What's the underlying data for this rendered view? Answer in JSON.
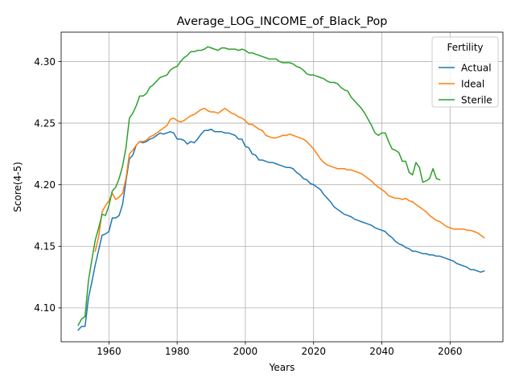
{
  "chart_data": {
    "type": "line",
    "title": "Average_LOG_INCOME_of_Black_Pop",
    "xlabel": "Years",
    "ylabel": "Score(4-5)",
    "xlim": [
      1946,
      2075.5
    ],
    "ylim": [
      4.0725,
      4.3238
    ],
    "xticks": [
      1960,
      1980,
      2000,
      2020,
      2040,
      2060
    ],
    "yticks": [
      4.1,
      4.15,
      4.2,
      4.25,
      4.3
    ],
    "xtick_labels": [
      "1960",
      "1980",
      "2000",
      "2020",
      "2040",
      "2060"
    ],
    "ytick_labels": [
      "4.10",
      "4.15",
      "4.20",
      "4.25",
      "4.30"
    ],
    "grid": true,
    "legend": {
      "title": "Fertility",
      "position": "upper right"
    },
    "series": [
      {
        "name": "Actual",
        "color": "#1f77b4",
        "x": [
          1951,
          1952,
          1953,
          1954,
          1955,
          1956,
          1957,
          1958,
          1959,
          1960,
          1961,
          1962,
          1963,
          1964,
          1965,
          1966,
          1967,
          1968,
          1969,
          1970,
          1971,
          1972,
          1973,
          1974,
          1975,
          1976,
          1977,
          1978,
          1979,
          1980,
          1981,
          1982,
          1983,
          1984,
          1985,
          1986,
          1987,
          1988,
          1989,
          1990,
          1991,
          1992,
          1993,
          1994,
          1995,
          1996,
          1997,
          1998,
          1999,
          2000,
          2001,
          2002,
          2003,
          2004,
          2005,
          2006,
          2007,
          2008,
          2009,
          2010,
          2011,
          2012,
          2013,
          2014,
          2015,
          2016,
          2017,
          2018,
          2019,
          2020,
          2021,
          2022,
          2023,
          2024,
          2025,
          2026,
          2027,
          2028,
          2029,
          2030,
          2031,
          2032,
          2033,
          2034,
          2035,
          2036,
          2037,
          2038,
          2039,
          2040,
          2041,
          2042,
          2043,
          2044,
          2045,
          2046,
          2047,
          2048,
          2049,
          2050,
          2051,
          2052,
          2053,
          2054,
          2055,
          2056,
          2057,
          2058,
          2059,
          2060,
          2061,
          2062,
          2063,
          2064,
          2065,
          2066,
          2067,
          2068,
          2069,
          2070
        ],
        "values": [
          4.082,
          4.085,
          4.085,
          4.108,
          4.121,
          4.135,
          4.147,
          4.159,
          4.16,
          4.162,
          4.173,
          4.173,
          4.175,
          4.184,
          4.203,
          4.221,
          4.224,
          4.232,
          4.235,
          4.234,
          4.235,
          4.237,
          4.238,
          4.24,
          4.242,
          4.241,
          4.242,
          4.243,
          4.242,
          4.237,
          4.237,
          4.236,
          4.233,
          4.235,
          4.234,
          4.237,
          4.241,
          4.244,
          4.244,
          4.245,
          4.243,
          4.243,
          4.243,
          4.242,
          4.242,
          4.241,
          4.24,
          4.237,
          4.237,
          4.231,
          4.23,
          4.225,
          4.224,
          4.22,
          4.22,
          4.219,
          4.218,
          4.218,
          4.217,
          4.216,
          4.215,
          4.214,
          4.214,
          4.213,
          4.21,
          4.208,
          4.205,
          4.204,
          4.201,
          4.2,
          4.198,
          4.196,
          4.192,
          4.189,
          4.186,
          4.182,
          4.18,
          4.178,
          4.176,
          4.175,
          4.174,
          4.172,
          4.171,
          4.17,
          4.169,
          4.168,
          4.167,
          4.165,
          4.164,
          4.163,
          4.162,
          4.159,
          4.157,
          4.154,
          4.152,
          4.151,
          4.149,
          4.148,
          4.146,
          4.146,
          4.145,
          4.144,
          4.144,
          4.143,
          4.143,
          4.142,
          4.142,
          4.141,
          4.14,
          4.139,
          4.138,
          4.136,
          4.135,
          4.134,
          4.133,
          4.131,
          4.131,
          4.13,
          4.129,
          4.13
        ]
      },
      {
        "name": "Ideal",
        "color": "#ff7f0e",
        "x": [
          1956,
          1957,
          1958,
          1959,
          1960,
          1961,
          1962,
          1963,
          1964,
          1965,
          1966,
          1967,
          1968,
          1969,
          1970,
          1971,
          1972,
          1973,
          1974,
          1975,
          1976,
          1977,
          1978,
          1979,
          1980,
          1981,
          1982,
          1983,
          1984,
          1985,
          1986,
          1987,
          1988,
          1989,
          1990,
          1991,
          1992,
          1993,
          1994,
          1995,
          1996,
          1997,
          1998,
          1999,
          2000,
          2001,
          2002,
          2003,
          2004,
          2005,
          2006,
          2007,
          2008,
          2009,
          2010,
          2011,
          2012,
          2013,
          2014,
          2015,
          2016,
          2017,
          2018,
          2019,
          2020,
          2021,
          2022,
          2023,
          2024,
          2025,
          2026,
          2027,
          2028,
          2029,
          2030,
          2031,
          2032,
          2033,
          2034,
          2035,
          2036,
          2037,
          2038,
          2039,
          2040,
          2041,
          2042,
          2043,
          2044,
          2045,
          2046,
          2047,
          2048,
          2049,
          2050,
          2051,
          2052,
          2053,
          2054,
          2055,
          2056,
          2057,
          2058,
          2059,
          2060,
          2061,
          2062,
          2063,
          2064,
          2065,
          2066,
          2067,
          2068,
          2069,
          2070
        ],
        "values": [
          4.146,
          4.158,
          4.178,
          4.183,
          4.187,
          4.193,
          4.188,
          4.19,
          4.193,
          4.205,
          4.225,
          4.228,
          4.232,
          4.235,
          4.235,
          4.236,
          4.239,
          4.24,
          4.242,
          4.244,
          4.246,
          4.248,
          4.253,
          4.254,
          4.252,
          4.251,
          4.252,
          4.254,
          4.256,
          4.257,
          4.259,
          4.261,
          4.262,
          4.26,
          4.259,
          4.259,
          4.258,
          4.26,
          4.262,
          4.26,
          4.258,
          4.257,
          4.255,
          4.254,
          4.252,
          4.249,
          4.249,
          4.247,
          4.245,
          4.244,
          4.24,
          4.239,
          4.238,
          4.238,
          4.239,
          4.24,
          4.24,
          4.241,
          4.24,
          4.239,
          4.238,
          4.237,
          4.235,
          4.232,
          4.229,
          4.225,
          4.221,
          4.218,
          4.216,
          4.215,
          4.214,
          4.213,
          4.213,
          4.213,
          4.212,
          4.212,
          4.211,
          4.21,
          4.209,
          4.207,
          4.205,
          4.203,
          4.2,
          4.198,
          4.196,
          4.194,
          4.191,
          4.19,
          4.189,
          4.189,
          4.188,
          4.189,
          4.187,
          4.186,
          4.184,
          4.182,
          4.18,
          4.178,
          4.175,
          4.173,
          4.171,
          4.17,
          4.168,
          4.166,
          4.165,
          4.164,
          4.164,
          4.164,
          4.164,
          4.163,
          4.163,
          4.162,
          4.161,
          4.159,
          4.157
        ]
      },
      {
        "name": "Sterile",
        "color": "#2ca02c",
        "x": [
          1951,
          1952,
          1953,
          1954,
          1955,
          1956,
          1957,
          1958,
          1959,
          1960,
          1961,
          1962,
          1963,
          1964,
          1965,
          1966,
          1967,
          1968,
          1969,
          1970,
          1971,
          1972,
          1973,
          1974,
          1975,
          1976,
          1977,
          1978,
          1979,
          1980,
          1981,
          1982,
          1983,
          1984,
          1985,
          1986,
          1987,
          1988,
          1989,
          1990,
          1991,
          1992,
          1993,
          1994,
          1995,
          1996,
          1997,
          1998,
          1999,
          2000,
          2001,
          2002,
          2003,
          2004,
          2005,
          2006,
          2007,
          2008,
          2009,
          2010,
          2011,
          2012,
          2013,
          2014,
          2015,
          2016,
          2017,
          2018,
          2019,
          2020,
          2021,
          2022,
          2023,
          2024,
          2025,
          2026,
          2027,
          2028,
          2029,
          2030,
          2031,
          2032,
          2033,
          2034,
          2035,
          2036,
          2037,
          2038,
          2039,
          2040,
          2041,
          2042,
          2043,
          2044,
          2045,
          2046,
          2047,
          2048,
          2049,
          2050,
          2051,
          2052,
          2053,
          2054,
          2055,
          2056,
          2057
        ],
        "values": [
          4.086,
          4.091,
          4.093,
          4.122,
          4.139,
          4.155,
          4.165,
          4.176,
          4.175,
          4.183,
          4.195,
          4.198,
          4.205,
          4.215,
          4.23,
          4.254,
          4.258,
          4.264,
          4.272,
          4.272,
          4.274,
          4.279,
          4.281,
          4.284,
          4.287,
          4.288,
          4.289,
          4.293,
          4.295,
          4.296,
          4.3,
          4.303,
          4.305,
          4.308,
          4.308,
          4.309,
          4.309,
          4.31,
          4.312,
          4.311,
          4.31,
          4.309,
          4.311,
          4.311,
          4.31,
          4.31,
          4.31,
          4.309,
          4.31,
          4.309,
          4.307,
          4.307,
          4.306,
          4.305,
          4.304,
          4.303,
          4.302,
          4.302,
          4.302,
          4.3,
          4.299,
          4.299,
          4.299,
          4.298,
          4.296,
          4.295,
          4.293,
          4.29,
          4.289,
          4.289,
          4.288,
          4.287,
          4.286,
          4.284,
          4.283,
          4.283,
          4.282,
          4.279,
          4.277,
          4.276,
          4.271,
          4.268,
          4.265,
          4.262,
          4.258,
          4.253,
          4.248,
          4.242,
          4.24,
          4.242,
          4.242,
          4.235,
          4.229,
          4.228,
          4.226,
          4.219,
          4.219,
          4.21,
          4.208,
          4.218,
          4.214,
          4.202,
          4.203,
          4.205,
          4.213,
          4.205,
          4.204
        ]
      }
    ]
  }
}
